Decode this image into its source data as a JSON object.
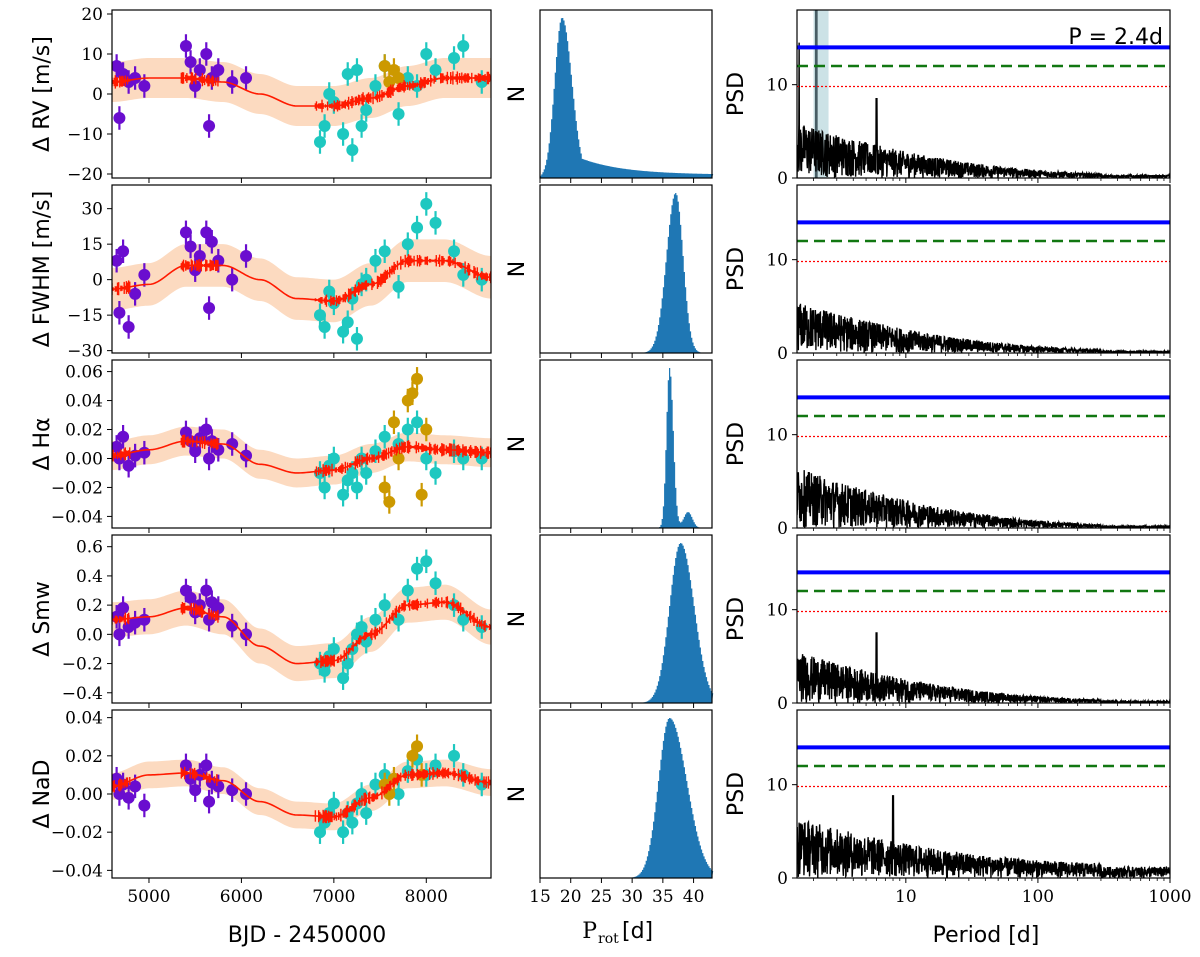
{
  "figure": {
    "xlabel_time": "BJD - 2450000",
    "xlabel_hist_main": "P",
    "xlabel_hist_sub": "rot",
    "xlabel_hist_unit": "[d]",
    "xlabel_period": "Period [d]",
    "hist_ylabel": "N",
    "psd_ylabel": "PSD",
    "period_annotation": "P = 2.4d"
  },
  "colors": {
    "group1": "#6a0dcf",
    "group2": "#1ec8c0",
    "group3": "#cc9900",
    "model": "#ff1a00",
    "band": "#fbd3b5",
    "hist": "#1f77b4",
    "fap_solid": "#0000ff",
    "fap_dashed": "#117711",
    "fap_dotted": "#ff0000",
    "annotation": "#2a7ab8",
    "highlight": "#aacfd6"
  },
  "chart_data": [
    {
      "id": "rv",
      "type": "scatter",
      "ylabel": "Δ RV [m/s]",
      "xlim": [
        4600,
        8700
      ],
      "ylim": [
        -21,
        21
      ],
      "yticks": [
        {
          "v": -20,
          "label": "−20"
        },
        {
          "v": -10,
          "label": "−10"
        },
        {
          "v": 0,
          "label": "0"
        },
        {
          "v": 10,
          "label": "10"
        },
        {
          "v": 20,
          "label": "20"
        }
      ],
      "model": {
        "x": [
          4600,
          5000,
          5400,
          5800,
          6200,
          6600,
          7000,
          7400,
          7800,
          8200,
          8700
        ],
        "y": [
          3,
          4,
          4,
          3,
          0,
          -3,
          -3,
          -1,
          2,
          4,
          4
        ],
        "band": 5
      },
      "series": [
        {
          "name": "group1",
          "x": [
            4650,
            4680,
            4720,
            4780,
            4850,
            4950,
            5400,
            5450,
            5500,
            5550,
            5620,
            5650,
            5680,
            5750,
            5900,
            6050
          ],
          "y": [
            7,
            -6,
            5,
            3,
            4,
            2,
            12,
            8,
            2,
            6,
            10,
            -8,
            4,
            6,
            3,
            4
          ]
        },
        {
          "name": "group2",
          "x": [
            6850,
            6900,
            6950,
            7000,
            7100,
            7150,
            7200,
            7250,
            7300,
            7350,
            7450,
            7550,
            7700,
            7800,
            7900,
            8000,
            8100,
            8300,
            8400,
            8600
          ],
          "y": [
            -12,
            -8,
            0,
            -2,
            -10,
            5,
            -14,
            6,
            -8,
            -4,
            2,
            7,
            -5,
            4,
            2,
            10,
            6,
            9,
            12,
            3
          ]
        },
        {
          "name": "group3",
          "x": [
            7550,
            7600,
            7650,
            7700
          ],
          "y": [
            7,
            3,
            6,
            4
          ]
        }
      ]
    },
    {
      "id": "fwhm",
      "type": "scatter",
      "ylabel": "Δ FWHM [m/s]",
      "xlim": [
        4600,
        8700
      ],
      "ylim": [
        -31,
        40
      ],
      "yticks": [
        {
          "v": -30,
          "label": "−30"
        },
        {
          "v": -15,
          "label": "−15"
        },
        {
          "v": 0,
          "label": "0"
        },
        {
          "v": 15,
          "label": "15"
        },
        {
          "v": 30,
          "label": "30"
        }
      ],
      "model": {
        "x": [
          4600,
          5000,
          5400,
          5800,
          6200,
          6600,
          7000,
          7400,
          7800,
          8200,
          8700
        ],
        "y": [
          -4,
          -2,
          6,
          6,
          0,
          -8,
          -9,
          -2,
          8,
          8,
          1
        ],
        "band": 9
      },
      "series": [
        {
          "name": "group1",
          "x": [
            4650,
            4680,
            4720,
            4780,
            4850,
            4950,
            5400,
            5450,
            5500,
            5550,
            5620,
            5650,
            5680,
            5750,
            5900,
            6050
          ],
          "y": [
            8,
            -14,
            12,
            -20,
            -6,
            2,
            20,
            14,
            4,
            10,
            20,
            -12,
            16,
            8,
            0,
            10
          ]
        },
        {
          "name": "group2",
          "x": [
            6850,
            6900,
            6950,
            7000,
            7100,
            7150,
            7200,
            7250,
            7300,
            7350,
            7450,
            7550,
            7700,
            7800,
            7900,
            8000,
            8100,
            8300,
            8400,
            8600
          ],
          "y": [
            -15,
            -20,
            -5,
            -10,
            -22,
            -18,
            -8,
            -25,
            -2,
            0,
            8,
            12,
            -3,
            15,
            22,
            32,
            24,
            12,
            2,
            0
          ]
        },
        {
          "name": "group3",
          "x": [],
          "y": []
        }
      ]
    },
    {
      "id": "halpha",
      "type": "scatter",
      "ylabel": "Δ Hα",
      "xlim": [
        4600,
        8700
      ],
      "ylim": [
        -0.048,
        0.068
      ],
      "yticks": [
        {
          "v": -0.04,
          "label": "−0.04"
        },
        {
          "v": -0.02,
          "label": "−0.02"
        },
        {
          "v": 0.0,
          "label": "0.00"
        },
        {
          "v": 0.02,
          "label": "0.02"
        },
        {
          "v": 0.04,
          "label": "0.04"
        },
        {
          "v": 0.06,
          "label": "0.06"
        }
      ],
      "model": {
        "x": [
          4600,
          5000,
          5400,
          5800,
          6200,
          6600,
          7000,
          7400,
          7800,
          8200,
          8700
        ],
        "y": [
          0.002,
          0.006,
          0.012,
          0.01,
          -0.004,
          -0.01,
          -0.008,
          0.0,
          0.008,
          0.006,
          0.004
        ],
        "band": 0.01
      },
      "series": [
        {
          "name": "group1",
          "x": [
            4650,
            4680,
            4720,
            4780,
            4850,
            4950,
            5400,
            5450,
            5500,
            5550,
            5620,
            5650,
            5680,
            5750,
            5900,
            6050
          ],
          "y": [
            0.008,
            0.0,
            0.015,
            -0.005,
            0.002,
            0.004,
            0.018,
            0.012,
            0.005,
            0.014,
            0.02,
            0.0,
            0.012,
            0.006,
            0.01,
            0.002
          ]
        },
        {
          "name": "group2",
          "x": [
            6850,
            6900,
            6950,
            7000,
            7100,
            7150,
            7200,
            7250,
            7300,
            7350,
            7450,
            7550,
            7700,
            7800,
            7900,
            8000,
            8100,
            8300,
            8400,
            8600
          ],
          "y": [
            -0.01,
            -0.02,
            -0.005,
            0.0,
            -0.025,
            -0.015,
            -0.01,
            -0.02,
            0.0,
            -0.01,
            0.005,
            0.015,
            0.01,
            0.02,
            0.025,
            0.0,
            -0.01,
            0.005,
            0.0,
            0.0
          ]
        },
        {
          "name": "group3",
          "x": [
            7550,
            7600,
            7650,
            7700,
            7800,
            7850,
            7900,
            7950,
            8000
          ],
          "y": [
            -0.02,
            -0.03,
            0.025,
            0.0,
            0.04,
            0.045,
            0.055,
            -0.025,
            0.02
          ]
        }
      ]
    },
    {
      "id": "smw",
      "type": "scatter",
      "ylabel": "Δ Smw",
      "xlim": [
        4600,
        8700
      ],
      "ylim": [
        -0.47,
        0.68
      ],
      "yticks": [
        {
          "v": -0.4,
          "label": "−0.4"
        },
        {
          "v": -0.2,
          "label": "−0.2"
        },
        {
          "v": 0.0,
          "label": "0.0"
        },
        {
          "v": 0.2,
          "label": "0.2"
        },
        {
          "v": 0.4,
          "label": "0.4"
        },
        {
          "v": 0.6,
          "label": "0.6"
        }
      ],
      "model": {
        "x": [
          4600,
          5000,
          5400,
          5800,
          6200,
          6600,
          7000,
          7400,
          7800,
          8200,
          8700
        ],
        "y": [
          0.1,
          0.12,
          0.18,
          0.12,
          -0.08,
          -0.2,
          -0.18,
          0.0,
          0.2,
          0.22,
          0.05
        ],
        "band": 0.12
      },
      "series": [
        {
          "name": "group1",
          "x": [
            4650,
            4680,
            4720,
            4780,
            4850,
            4950,
            5400,
            5450,
            5500,
            5550,
            5620,
            5650,
            5680,
            5750,
            5900,
            6050
          ],
          "y": [
            0.12,
            0.0,
            0.18,
            0.05,
            0.08,
            0.1,
            0.3,
            0.25,
            0.15,
            0.2,
            0.3,
            0.1,
            0.22,
            0.18,
            0.06,
            0.0
          ]
        },
        {
          "name": "group2",
          "x": [
            6850,
            6900,
            6950,
            7000,
            7100,
            7150,
            7200,
            7250,
            7300,
            7350,
            7450,
            7550,
            7700,
            7800,
            7900,
            8000,
            8100,
            8300,
            8400,
            8600
          ],
          "y": [
            -0.2,
            -0.25,
            -0.15,
            -0.1,
            -0.3,
            -0.2,
            -0.1,
            0.0,
            0.05,
            -0.05,
            0.1,
            0.2,
            0.1,
            0.3,
            0.45,
            0.5,
            0.35,
            0.2,
            0.1,
            0.05
          ]
        },
        {
          "name": "group3",
          "x": [],
          "y": []
        }
      ]
    },
    {
      "id": "nad",
      "type": "scatter",
      "ylabel": "Δ NaD",
      "xlim": [
        4600,
        8700
      ],
      "ylim": [
        -0.044,
        0.044
      ],
      "yticks": [
        {
          "v": -0.04,
          "label": "−0.04"
        },
        {
          "v": -0.02,
          "label": "−0.02"
        },
        {
          "v": 0.0,
          "label": "0.00"
        },
        {
          "v": 0.02,
          "label": "0.02"
        },
        {
          "v": 0.04,
          "label": "0.04"
        }
      ],
      "model": {
        "x": [
          4600,
          5000,
          5400,
          5800,
          6200,
          6600,
          7000,
          7400,
          7800,
          8200,
          8700
        ],
        "y": [
          0.004,
          0.01,
          0.011,
          0.007,
          -0.004,
          -0.011,
          -0.012,
          -0.002,
          0.01,
          0.011,
          0.006
        ],
        "band": 0.007
      },
      "series": [
        {
          "name": "group1",
          "x": [
            4650,
            4680,
            4720,
            4780,
            4850,
            4950,
            5400,
            5450,
            5500,
            5550,
            5620,
            5650,
            5680,
            5750,
            5900,
            6050
          ],
          "y": [
            0.008,
            0.0,
            0.005,
            -0.002,
            0.004,
            -0.006,
            0.015,
            0.008,
            0.002,
            0.01,
            0.015,
            -0.004,
            0.006,
            0.004,
            0.002,
            0.0
          ]
        },
        {
          "name": "group2",
          "x": [
            6850,
            6900,
            6950,
            7000,
            7100,
            7150,
            7200,
            7250,
            7300,
            7350,
            7450,
            7550,
            7700,
            7800,
            7900,
            8000,
            8100,
            8300,
            8400,
            8600
          ],
          "y": [
            -0.02,
            -0.015,
            -0.01,
            -0.005,
            -0.02,
            -0.01,
            -0.015,
            -0.005,
            0.0,
            -0.01,
            0.005,
            0.01,
            0.0,
            0.012,
            0.018,
            0.01,
            0.015,
            0.02,
            0.01,
            0.005
          ]
        },
        {
          "name": "group3",
          "x": [
            7550,
            7600,
            7650,
            7850,
            7900,
            7950
          ],
          "y": [
            0.005,
            0.0,
            0.008,
            0.02,
            0.025,
            0.01
          ]
        }
      ]
    }
  ],
  "histograms": [
    {
      "id": "rv",
      "type": "histogram",
      "xlim": [
        15,
        43
      ],
      "peak": 18.5,
      "width_left": 1.2,
      "width_right": 1.6,
      "tail": 0.12,
      "tail_decay": 7.0
    },
    {
      "id": "fwhm",
      "type": "histogram",
      "xlim": [
        15,
        43
      ],
      "peak": 37,
      "width_left": 1.5,
      "width_right": 1.2,
      "tail": 0.0,
      "tail_decay": 5.0
    },
    {
      "id": "halpha",
      "type": "histogram",
      "xlim": [
        15,
        43
      ],
      "peak": 36,
      "width_left": 0.5,
      "width_right": 0.6,
      "tail": 0.0,
      "tail_decay": 5.0,
      "bump_center": 39,
      "bump_height": 0.1,
      "bump_width": 0.7
    },
    {
      "id": "smw",
      "type": "histogram",
      "xlim": [
        15,
        43
      ],
      "peak": 37.8,
      "width_left": 1.8,
      "width_right": 2.2,
      "tail": 0.0,
      "tail_decay": 5.0
    },
    {
      "id": "nad",
      "type": "histogram",
      "xlim": [
        15,
        43
      ],
      "peak": 36,
      "width_left": 1.8,
      "width_right": 2.8,
      "tail": 0.0,
      "tail_decay": 5.0
    }
  ],
  "hist_xticks": [
    "15",
    "20",
    "25",
    "30",
    "35",
    "40"
  ],
  "periodograms": [
    {
      "id": "rv",
      "type": "line",
      "xscale": "log",
      "xlim": [
        1.5,
        1000
      ],
      "ylim": [
        0,
        18
      ],
      "yticks": [
        "0",
        "10"
      ],
      "fap": [
        14,
        12,
        9.8
      ],
      "env_max": 6,
      "env_min": 0.4,
      "spike_period": 6,
      "spike_value": 8.5,
      "highlight_period": 2.4,
      "highlight_range": [
        2.0,
        2.6
      ],
      "highlight_dark_range": [
        2.05,
        2.15
      ],
      "first_spike": 14.5
    },
    {
      "id": "fwhm",
      "type": "line",
      "xscale": "log",
      "xlim": [
        1.5,
        1000
      ],
      "ylim": [
        0,
        18
      ],
      "yticks": [
        "0",
        "10"
      ],
      "fap": [
        14,
        12,
        9.8
      ],
      "env_max": 5.5,
      "env_min": 0.3,
      "spike_period": 0,
      "spike_value": 0
    },
    {
      "id": "halpha",
      "type": "line",
      "xscale": "log",
      "xlim": [
        1.5,
        1000
      ],
      "ylim": [
        0,
        18
      ],
      "yticks": [
        "0",
        "10"
      ],
      "fap": [
        14,
        12,
        9.8
      ],
      "env_max": 6.5,
      "env_min": 0.3,
      "spike_period": 0,
      "spike_value": 0
    },
    {
      "id": "smw",
      "type": "line",
      "xscale": "log",
      "xlim": [
        1.5,
        1000
      ],
      "ylim": [
        0,
        18
      ],
      "yticks": [
        "0",
        "10"
      ],
      "fap": [
        14,
        12,
        9.8
      ],
      "env_max": 5.5,
      "env_min": 0.3,
      "spike_period": 6,
      "spike_value": 7.5
    },
    {
      "id": "nad",
      "type": "line",
      "xscale": "log",
      "xlim": [
        1.5,
        1000
      ],
      "ylim": [
        0,
        18
      ],
      "yticks": [
        "0",
        "10"
      ],
      "fap": [
        14,
        12,
        9.8
      ],
      "env_max": 6.5,
      "env_min": 1.5,
      "spike_period": 8,
      "spike_value": 8.8
    }
  ],
  "time_xticks": [
    {
      "v": 5000,
      "label": "5000"
    },
    {
      "v": 6000,
      "label": "6000"
    },
    {
      "v": 7000,
      "label": "7000"
    },
    {
      "v": 8000,
      "label": "8000"
    }
  ],
  "period_xticks": [
    {
      "v": 10,
      "label": "10"
    },
    {
      "v": 100,
      "label": "100"
    },
    {
      "v": 1000,
      "label": "1000"
    }
  ]
}
